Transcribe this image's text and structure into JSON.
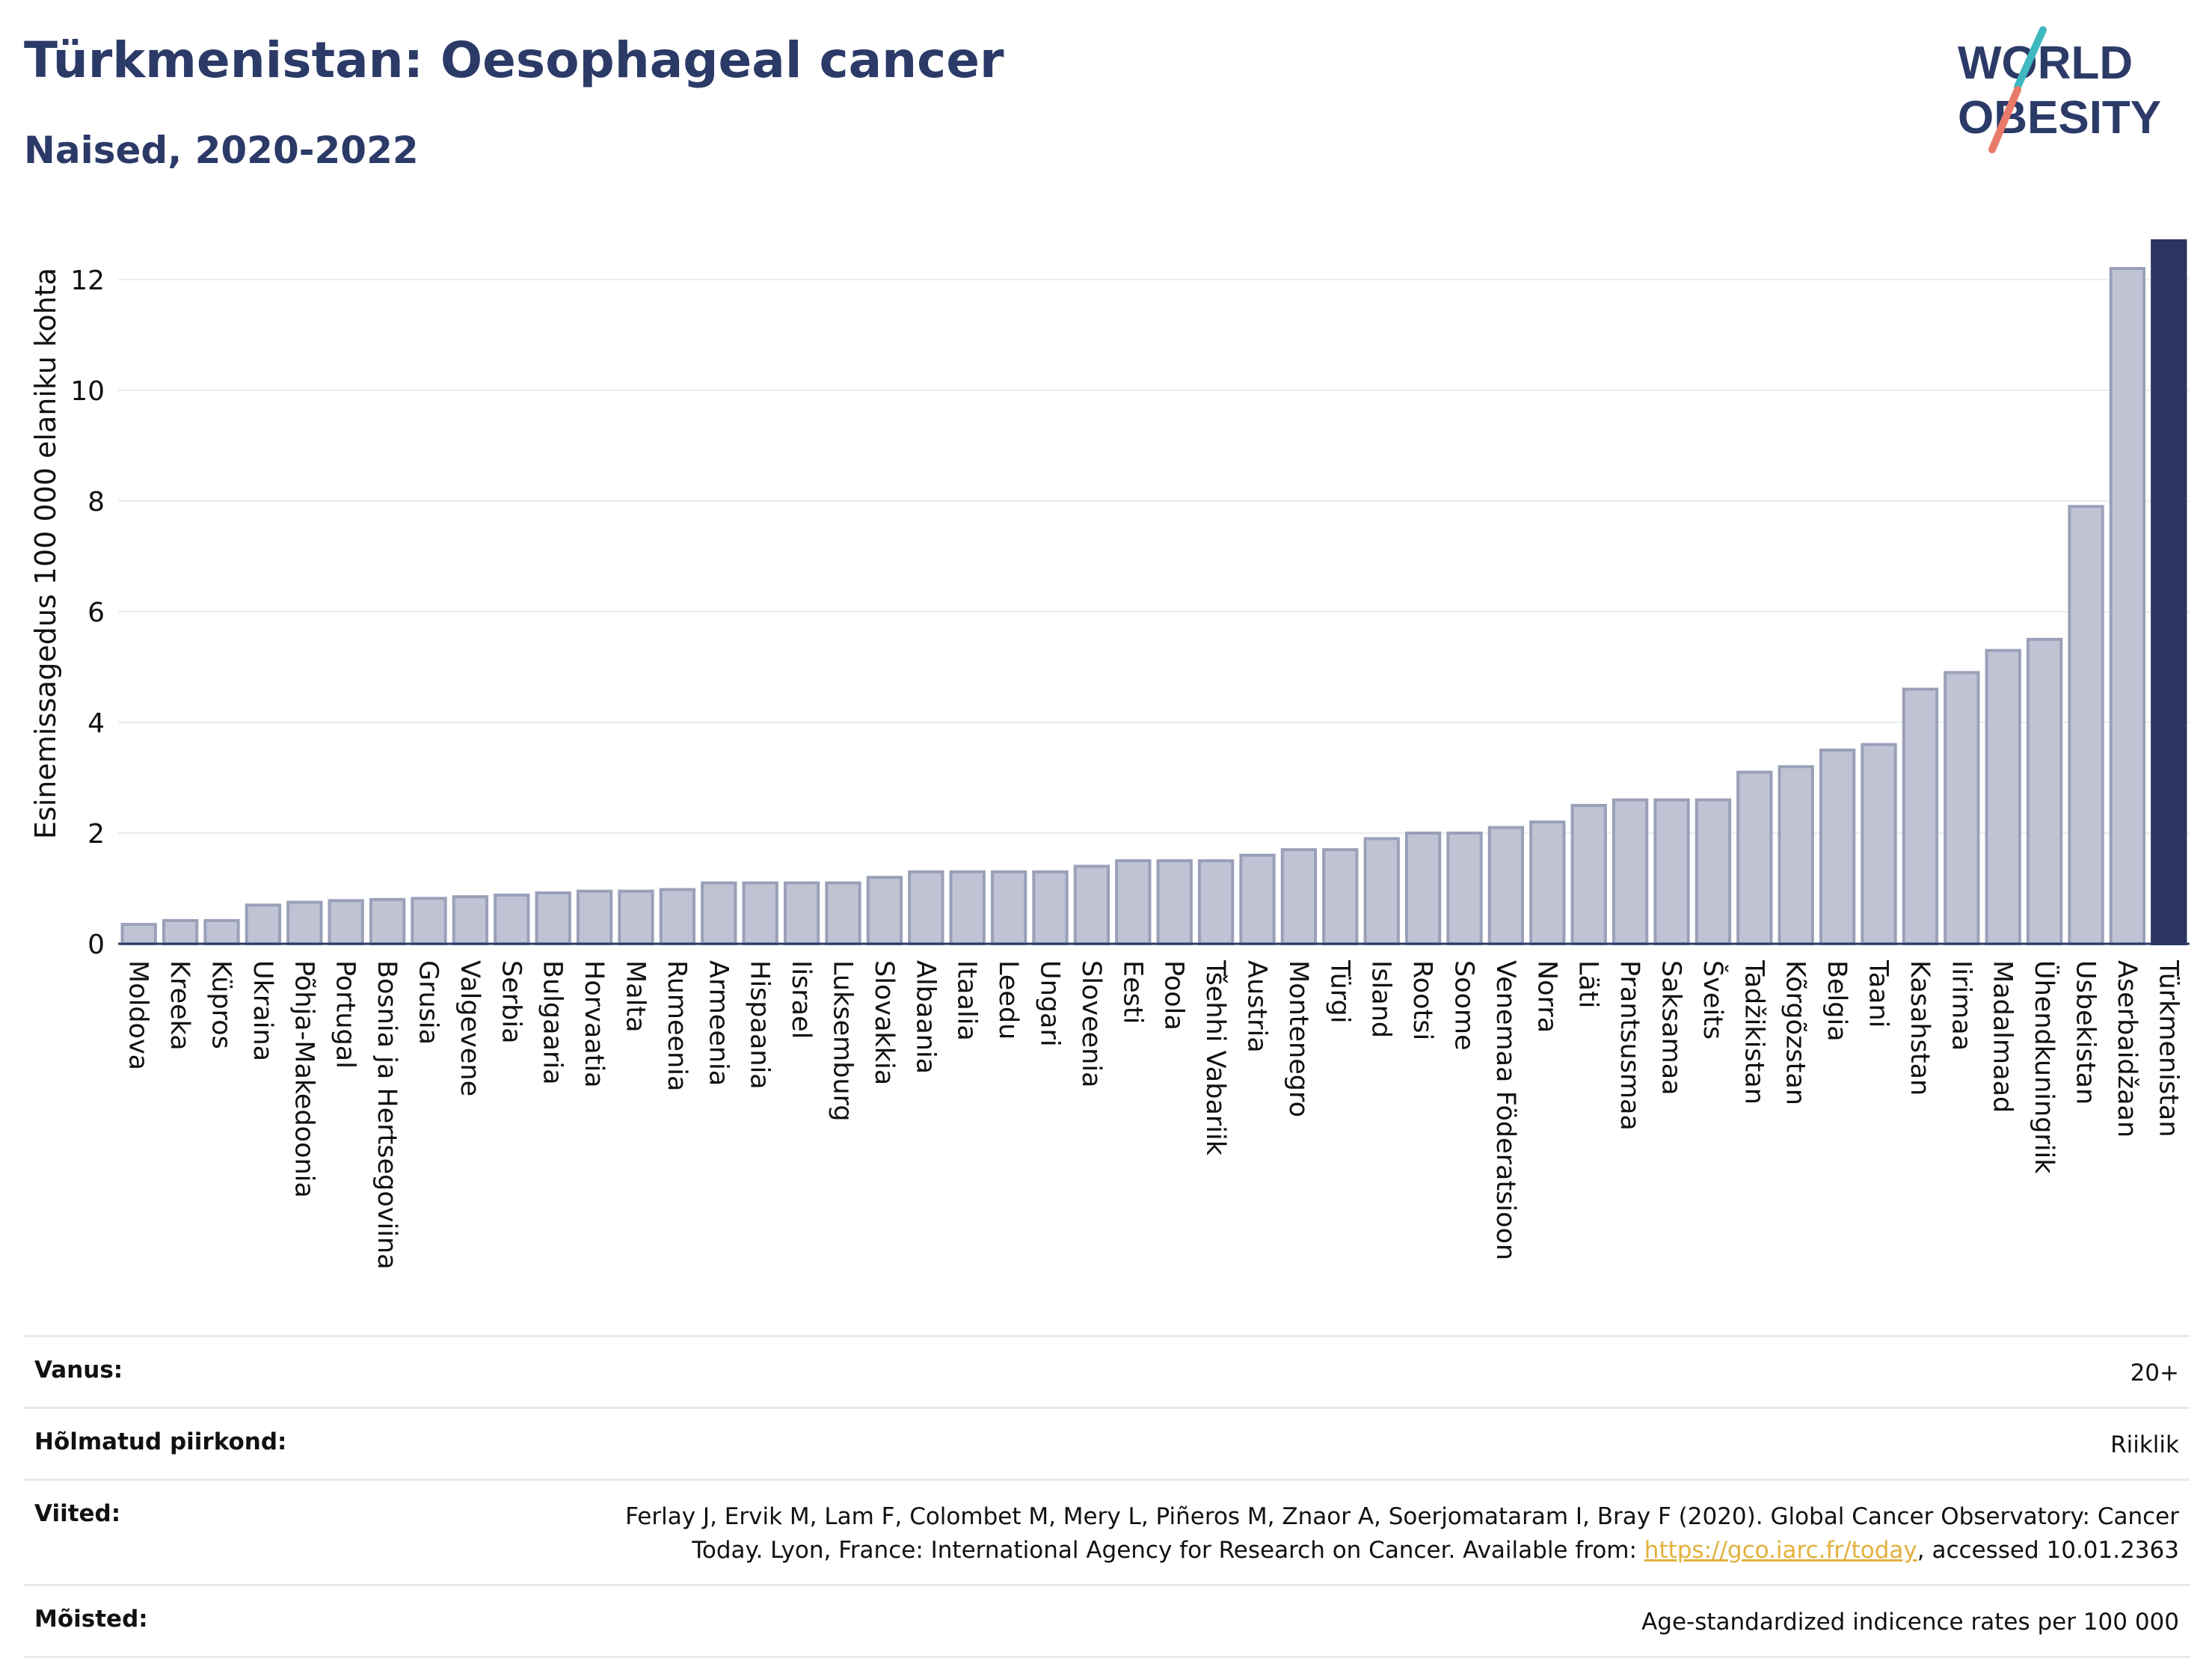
{
  "header": {
    "title": "Türkmenistan: Oesophageal cancer",
    "subtitle": "Naised, 2020-2022"
  },
  "logo": {
    "line1": "WORLD",
    "line2": "OBESITY"
  },
  "colors": {
    "bar": "#bfc3d3",
    "bar_stroke": "#9aa0b8",
    "highlight": "#2b3560",
    "text": "#2b3a67",
    "logo_teal": "#3fb8c0",
    "logo_coral": "#e87a6a"
  },
  "chart_data": {
    "type": "bar",
    "title": "Türkmenistan: Oesophageal cancer",
    "subtitle": "Naised, 2020-2022",
    "ylabel": "Esinemissagedus 100 000 elaniku kohta",
    "xlabel": "",
    "ylim": [
      0,
      12.7
    ],
    "yticks": [
      0,
      2,
      4,
      6,
      8,
      10,
      12
    ],
    "grid": true,
    "highlight": "Türkmenistan",
    "categories": [
      "Moldova",
      "Kreeka",
      "Küpros",
      "Ukraina",
      "Põhja-Makedoonia",
      "Portugal",
      "Bosnia ja Hertsegoviina",
      "Grusia",
      "Valgevene",
      "Serbia",
      "Bulgaaria",
      "Horvaatia",
      "Malta",
      "Rumeenia",
      "Armeenia",
      "Hispaania",
      "Iisrael",
      "Luksemburg",
      "Slovakkia",
      "Albaania",
      "Itaalia",
      "Leedu",
      "Ungari",
      "Sloveenia",
      "Eesti",
      "Poola",
      "Tšehhi Vabariik",
      "Austria",
      "Montenegro",
      "Türgi",
      "Island",
      "Rootsi",
      "Soome",
      "Venemaa Föderatsioon",
      "Norra",
      "Läti",
      "Prantsusmaa",
      "Saksamaa",
      "Šveits",
      "Tadžikistan",
      "Kõrgõzstan",
      "Belgia",
      "Taani",
      "Kasahstan",
      "Iirimaa",
      "Madalmaad",
      "Ühendkuningriik",
      "Usbekistan",
      "Aserbaidžaan",
      "Türkmenistan"
    ],
    "values": [
      0.35,
      0.42,
      0.42,
      0.7,
      0.75,
      0.78,
      0.8,
      0.82,
      0.85,
      0.88,
      0.92,
      0.95,
      0.95,
      0.98,
      1.1,
      1.1,
      1.1,
      1.1,
      1.2,
      1.3,
      1.3,
      1.3,
      1.3,
      1.4,
      1.5,
      1.5,
      1.5,
      1.6,
      1.7,
      1.7,
      1.9,
      2.0,
      2.0,
      2.1,
      2.2,
      2.5,
      2.6,
      2.6,
      2.6,
      3.1,
      3.2,
      3.5,
      3.6,
      4.6,
      4.9,
      5.3,
      5.5,
      7.9,
      12.2,
      12.7
    ]
  },
  "info": {
    "rows": [
      {
        "label": "Vanus:",
        "value": "20+"
      },
      {
        "label": "Hõlmatud piirkond:",
        "value": "Riiklik"
      },
      {
        "label": "Viited:",
        "value": "Ferlay J, Ervik M, Lam F, Colombet M, Mery L, Piñeros M, Znaor A, Soerjomataram I, Bray F (2020). Global Cancer Observatory: Cancer Today. Lyon, France: International Agency for Research on Cancer. Available from: ",
        "link": "https://gco.iarc.fr/today",
        "suffix": ", accessed 10.01.2363"
      },
      {
        "label": "Mõisted:",
        "value": "Age-standardized indicence rates per 100 000"
      }
    ]
  }
}
